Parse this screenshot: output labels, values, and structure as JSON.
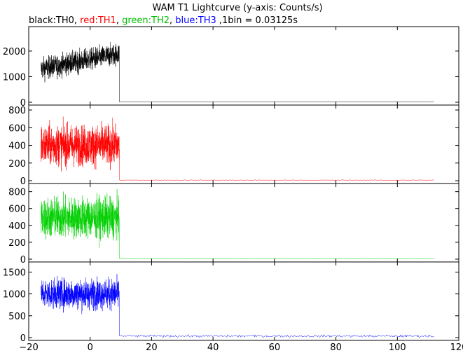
{
  "title": "WAM T1 Lightcurve (y-axis: Counts/s)",
  "subtitle_parts": [
    {
      "text": "black:TH0, ",
      "color": "#000000"
    },
    {
      "text": "red:TH1",
      "color": "#ff0000"
    },
    {
      "text": ", ",
      "color": "#000000"
    },
    {
      "text": "green:TH2",
      "color": "#00c000"
    },
    {
      "text": ", ",
      "color": "#000000"
    },
    {
      "text": "blue:TH3",
      "color": "#0000ff"
    },
    {
      "text": " ,1bin = 0.03125s",
      "color": "#000000"
    }
  ],
  "chart_data": {
    "type": "line",
    "title": "WAM T1 Lightcurve (y-axis: Counts/s)",
    "subtitle": "black:TH0, red:TH1, green:TH2, blue:TH3 ,1bin = 0.03125s",
    "xlabel": "",
    "ylabel": "",
    "xlim": [
      -20,
      120
    ],
    "x_ticks": [
      -20,
      0,
      20,
      40,
      60,
      80,
      100,
      120
    ],
    "bin_seconds": 0.03125,
    "shared_x": true,
    "grid": false,
    "legend": "none",
    "panels": [
      {
        "name": "TH0",
        "color": "#000000",
        "ylim": [
          0,
          2900
        ],
        "y_ticks": [
          0,
          1000,
          2000
        ],
        "segments": [
          {
            "x_start": -16,
            "x_end": 9.5,
            "level_start": 1300,
            "level_end": 1900,
            "noise": 300
          },
          {
            "x_start": 9.5,
            "x_end": 112,
            "level_start": 15,
            "level_end": 15,
            "noise": 5
          }
        ]
      },
      {
        "name": "TH1",
        "color": "#ff0000",
        "ylim": [
          0,
          840
        ],
        "y_ticks": [
          0,
          200,
          400,
          600,
          800
        ],
        "segments": [
          {
            "x_start": -16,
            "x_end": 9.5,
            "level_start": 400,
            "level_end": 400,
            "noise": 160
          },
          {
            "x_start": 9.5,
            "x_end": 112,
            "level_start": 6,
            "level_end": 6,
            "noise": 3
          }
        ]
      },
      {
        "name": "TH2",
        "color": "#00d000",
        "ylim": [
          0,
          880
        ],
        "y_ticks": [
          0,
          200,
          400,
          600,
          800
        ],
        "segments": [
          {
            "x_start": -16,
            "x_end": 9.5,
            "level_start": 490,
            "level_end": 490,
            "noise": 170
          },
          {
            "x_start": 9.5,
            "x_end": 112,
            "level_start": 6,
            "level_end": 6,
            "noise": 3
          }
        ]
      },
      {
        "name": "TH3",
        "color": "#0000ff",
        "ylim": [
          0,
          1700
        ],
        "y_ticks": [
          0,
          500,
          1000,
          1500
        ],
        "segments": [
          {
            "x_start": -16,
            "x_end": 9.5,
            "level_start": 1000,
            "level_end": 1000,
            "noise": 240
          },
          {
            "x_start": 9.5,
            "x_end": 112,
            "level_start": 35,
            "level_end": 35,
            "noise": 20
          }
        ]
      }
    ]
  }
}
